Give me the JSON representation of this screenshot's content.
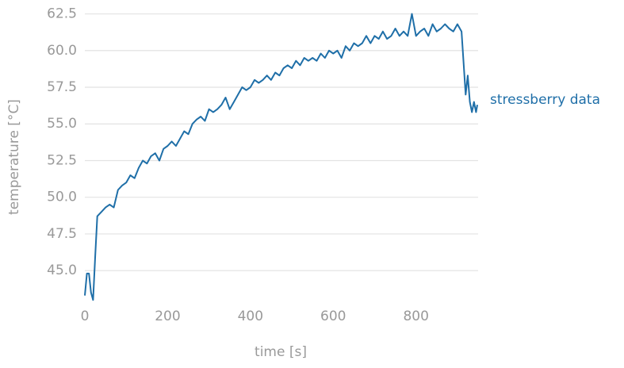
{
  "chart_data": {
    "type": "line",
    "x_label": "time [s]",
    "y_label": "temperature [°C]",
    "xlim": [
      0,
      950
    ],
    "ylim": [
      42.9,
      62.8
    ],
    "xticks": [
      0,
      200,
      400,
      600,
      800
    ],
    "yticks": [
      {
        "value": 45,
        "label": "45.0"
      },
      47.5,
      {
        "value": 50,
        "label": "50.0"
      },
      52.5,
      {
        "value": 55,
        "label": "55.0"
      },
      57.5,
      {
        "value": 60,
        "label": "60.0"
      },
      62.5
    ],
    "grid": true,
    "series": [
      {
        "name": "stressberry data",
        "color": "#1f6fa8",
        "x": [
          0,
          5,
          10,
          15,
          20,
          25,
          30,
          40,
          50,
          60,
          70,
          80,
          90,
          100,
          110,
          120,
          130,
          140,
          150,
          160,
          170,
          180,
          190,
          200,
          210,
          220,
          230,
          240,
          250,
          260,
          270,
          280,
          290,
          300,
          310,
          320,
          330,
          340,
          350,
          360,
          370,
          380,
          390,
          400,
          410,
          420,
          430,
          440,
          450,
          460,
          470,
          480,
          490,
          500,
          510,
          520,
          530,
          540,
          550,
          560,
          570,
          580,
          590,
          600,
          610,
          620,
          630,
          640,
          650,
          660,
          670,
          680,
          690,
          700,
          710,
          720,
          730,
          740,
          750,
          760,
          770,
          780,
          790,
          800,
          810,
          820,
          830,
          840,
          850,
          860,
          870,
          880,
          890,
          900,
          910,
          920,
          925,
          930,
          935,
          940,
          945,
          948
        ],
        "values": [
          43.3,
          44.8,
          44.8,
          43.5,
          43.0,
          46.0,
          48.7,
          49.0,
          49.3,
          49.5,
          49.3,
          50.5,
          50.8,
          51.0,
          51.5,
          51.3,
          52.0,
          52.5,
          52.3,
          52.8,
          53.0,
          52.5,
          53.3,
          53.5,
          53.8,
          53.5,
          54.0,
          54.5,
          54.3,
          55.0,
          55.3,
          55.5,
          55.2,
          56.0,
          55.8,
          56.0,
          56.3,
          56.8,
          56.0,
          56.5,
          57.0,
          57.5,
          57.3,
          57.5,
          58.0,
          57.8,
          58.0,
          58.3,
          58.0,
          58.5,
          58.3,
          58.8,
          59.0,
          58.8,
          59.3,
          59.0,
          59.5,
          59.3,
          59.5,
          59.3,
          59.8,
          59.5,
          60.0,
          59.8,
          60.0,
          59.5,
          60.3,
          60.0,
          60.5,
          60.3,
          60.5,
          61.0,
          60.5,
          61.0,
          60.8,
          61.3,
          60.8,
          61.0,
          61.5,
          61.0,
          61.3,
          61.0,
          62.5,
          61.0,
          61.3,
          61.5,
          61.0,
          61.8,
          61.3,
          61.5,
          61.8,
          61.5,
          61.3,
          61.8,
          61.3,
          57.0,
          58.3,
          56.5,
          55.8,
          56.5,
          55.8,
          56.3
        ]
      }
    ]
  }
}
